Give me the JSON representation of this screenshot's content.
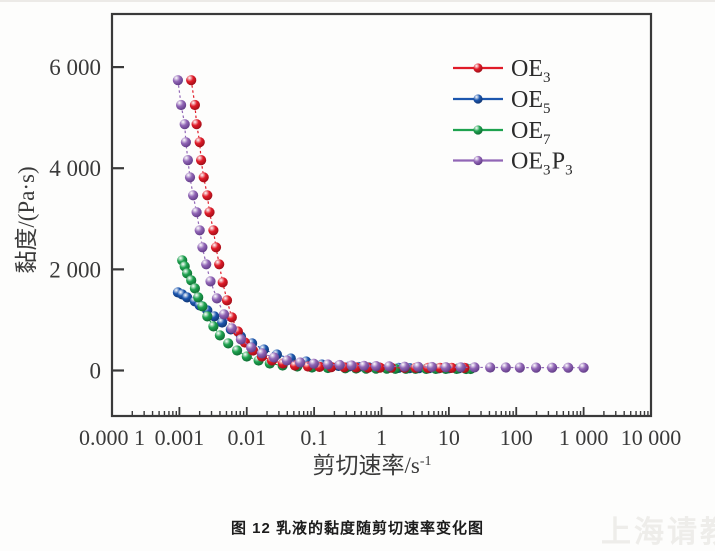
{
  "figure": {
    "caption": "图 12  乳液的黏度随剪切速率变化图",
    "watermark": "上海请教"
  },
  "chart_data": {
    "type": "scatter",
    "x_scale": "log",
    "title": "",
    "xlabel": "剪切速率/s",
    "xlabel_sup": "-1",
    "ylabel": "黏度/(Pa·s)",
    "xlim": [
      0.0001,
      10000
    ],
    "ylim": [
      -900,
      7050
    ],
    "grid": false,
    "legend_position": "top-right",
    "x_ticks": {
      "values": [
        0.0001,
        0.001,
        0.01,
        0.1,
        1,
        10,
        100,
        1000,
        10000
      ],
      "labels": [
        "0.000 1",
        "0.001",
        "0.01",
        "0.1",
        "1",
        "10",
        "100",
        "1 000",
        "10 000"
      ]
    },
    "y_ticks": {
      "values": [
        0,
        2000,
        4000,
        6000
      ],
      "labels": [
        "0",
        "2 000",
        "4 000",
        "6 000"
      ]
    },
    "axis_color": "#3a3a3a",
    "series": [
      {
        "name": "OE3",
        "label_parts": [
          [
            "OE",
            "3"
          ]
        ],
        "color": "#e01b28",
        "color_dark": "#8e0b14",
        "z": 3,
        "points": [
          [
            0.0015,
            5740
          ],
          [
            0.0017,
            5250
          ],
          [
            0.0018,
            4870
          ],
          [
            0.002,
            4515
          ],
          [
            0.0021,
            4160
          ],
          [
            0.0023,
            3820
          ],
          [
            0.0026,
            3465
          ],
          [
            0.0028,
            3130
          ],
          [
            0.0032,
            2772
          ],
          [
            0.0035,
            2436
          ],
          [
            0.0039,
            2100
          ],
          [
            0.0044,
            1743
          ],
          [
            0.0051,
            1386
          ],
          [
            0.006,
            1050
          ],
          [
            0.0074,
            772
          ],
          [
            0.0094,
            554
          ],
          [
            0.0124,
            396
          ],
          [
            0.0168,
            277
          ],
          [
            0.0237,
            198
          ],
          [
            0.0344,
            139
          ],
          [
            0.052,
            99
          ],
          [
            0.081,
            79
          ],
          [
            0.12,
            71
          ],
          [
            0.18,
            67
          ],
          [
            0.28,
            63
          ],
          [
            0.42,
            60
          ],
          [
            0.63,
            58
          ],
          [
            0.95,
            56
          ],
          [
            1.4,
            55
          ],
          [
            2.2,
            54
          ],
          [
            3.2,
            53
          ],
          [
            4.9,
            52
          ],
          [
            7.4,
            52
          ],
          [
            11,
            51
          ],
          [
            17,
            51
          ]
        ]
      },
      {
        "name": "OE5",
        "label_parts": [
          [
            "OE",
            "5"
          ]
        ],
        "color": "#1c56ae",
        "color_dark": "#0c2d63",
        "z": 1,
        "points": [
          [
            0.00095,
            1545
          ],
          [
            0.0011,
            1505
          ],
          [
            0.0013,
            1446
          ],
          [
            0.0017,
            1366
          ],
          [
            0.002,
            1287
          ],
          [
            0.0026,
            1188
          ],
          [
            0.0033,
            1069
          ],
          [
            0.0043,
            950
          ],
          [
            0.0058,
            812
          ],
          [
            0.0082,
            673
          ],
          [
            0.012,
            535
          ],
          [
            0.018,
            416
          ],
          [
            0.028,
            317
          ],
          [
            0.045,
            238
          ],
          [
            0.076,
            178
          ],
          [
            0.13,
            119
          ],
          [
            0.23,
            90
          ],
          [
            0.33,
            78
          ],
          [
            0.46,
            70
          ],
          [
            0.65,
            64
          ],
          [
            0.92,
            59
          ],
          [
            1.3,
            55
          ],
          [
            1.8,
            51
          ],
          [
            2.6,
            48
          ],
          [
            3.6,
            46
          ],
          [
            5.1,
            45
          ],
          [
            7.1,
            44
          ],
          [
            10,
            43
          ],
          [
            14,
            42
          ],
          [
            18,
            41
          ]
        ]
      },
      {
        "name": "OE7",
        "label_parts": [
          [
            "OE",
            "7"
          ]
        ],
        "color": "#1ea24f",
        "color_dark": "#0b5e2b",
        "z": 2,
        "points": [
          [
            0.0011,
            2178
          ],
          [
            0.0012,
            2059
          ],
          [
            0.0013,
            1921
          ],
          [
            0.0015,
            1782
          ],
          [
            0.0017,
            1624
          ],
          [
            0.0019,
            1446
          ],
          [
            0.0022,
            1267
          ],
          [
            0.0026,
            1069
          ],
          [
            0.0032,
            871
          ],
          [
            0.004,
            693
          ],
          [
            0.0053,
            535
          ],
          [
            0.0072,
            396
          ],
          [
            0.01,
            277
          ],
          [
            0.015,
            198
          ],
          [
            0.022,
            139
          ],
          [
            0.034,
            99
          ],
          [
            0.056,
            79
          ],
          [
            0.093,
            59
          ],
          [
            0.16,
            50
          ],
          [
            0.29,
            43
          ],
          [
            0.42,
            40
          ],
          [
            0.59,
            38
          ],
          [
            0.83,
            36
          ],
          [
            1.2,
            35
          ],
          [
            1.6,
            34
          ],
          [
            2.3,
            33
          ],
          [
            3.2,
            33
          ],
          [
            4.6,
            32
          ],
          [
            6.4,
            32
          ],
          [
            9,
            31
          ],
          [
            13,
            31
          ],
          [
            18,
            30
          ],
          [
            21,
            30
          ]
        ]
      },
      {
        "name": "OE3P3",
        "label_parts": [
          [
            "OE",
            "3"
          ],
          [
            "P",
            "3"
          ]
        ],
        "color": "#9166b6",
        "color_dark": "#55307a",
        "z": 4,
        "points": [
          [
            0.00095,
            5740
          ],
          [
            0.00106,
            5250
          ],
          [
            0.0012,
            4870
          ],
          [
            0.00125,
            4515
          ],
          [
            0.00134,
            4160
          ],
          [
            0.00144,
            3820
          ],
          [
            0.0016,
            3465
          ],
          [
            0.0018,
            3130
          ],
          [
            0.002,
            2772
          ],
          [
            0.0022,
            2436
          ],
          [
            0.0025,
            2100
          ],
          [
            0.0029,
            1762
          ],
          [
            0.0036,
            1426
          ],
          [
            0.0046,
            1109
          ],
          [
            0.006,
            832
          ],
          [
            0.0082,
            614
          ],
          [
            0.0116,
            455
          ],
          [
            0.0168,
            337
          ],
          [
            0.0254,
            257
          ],
          [
            0.0395,
            198
          ],
          [
            0.062,
            158
          ],
          [
            0.099,
            135
          ],
          [
            0.16,
            119
          ],
          [
            0.24,
            109
          ],
          [
            0.36,
            99
          ],
          [
            0.55,
            92
          ],
          [
            0.83,
            86
          ],
          [
            1.3,
            80
          ],
          [
            2.2,
            75
          ],
          [
            3.5,
            72
          ],
          [
            5.6,
            69
          ],
          [
            9,
            66
          ],
          [
            15,
            64
          ],
          [
            24,
            62
          ],
          [
            41,
            60
          ],
          [
            70,
            59
          ],
          [
            113,
            58
          ],
          [
            197,
            57
          ],
          [
            340,
            56
          ],
          [
            590,
            55
          ],
          [
            1000,
            55
          ]
        ]
      }
    ]
  }
}
